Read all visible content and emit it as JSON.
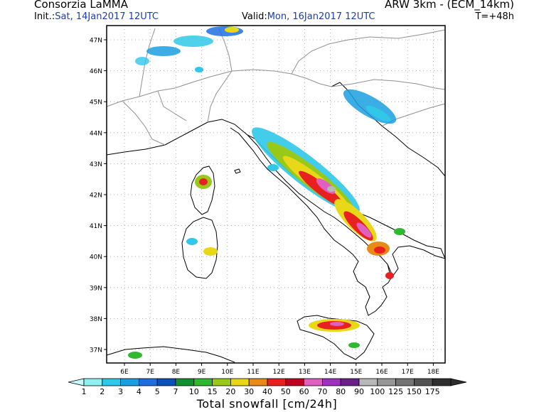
{
  "header": {
    "org": "Consorzia LaMMA",
    "init_label": "Init.:",
    "init_value": "Sat, 14Jan2017 12UTC",
    "model": "ARW 3km - (ECM_14km)",
    "valid_label": "Valid:",
    "valid_value": "Mon, 16Jan2017 12UTC",
    "timestep": "T=+48h"
  },
  "map": {
    "lat_labels": [
      "47N",
      "46N",
      "45N",
      "44N",
      "43N",
      "42N",
      "41N",
      "40N",
      "39N",
      "38N",
      "37N"
    ],
    "lon_labels": [
      "6E",
      "7E",
      "8E",
      "9E",
      "10E",
      "11E",
      "12E",
      "13E",
      "14E",
      "15E",
      "16E",
      "17E",
      "18E"
    ]
  },
  "colorbar": {
    "title": "Total snowfall [cm/24h]",
    "levels": [
      "1",
      "2",
      "3",
      "4",
      "5",
      "7",
      "10",
      "15",
      "20",
      "30",
      "40",
      "50",
      "60",
      "70",
      "80",
      "90",
      "100",
      "125",
      "150",
      "175"
    ],
    "colors": [
      "#8ff0f0",
      "#30c8e8",
      "#1aa0e0",
      "#1e6ee0",
      "#0a50b8",
      "#109030",
      "#30b830",
      "#98c818",
      "#e8d818",
      "#e88a18",
      "#e82020",
      "#c00020",
      "#e060c0",
      "#a030c0",
      "#6a2088",
      "#b8b8b8",
      "#969696",
      "#747474",
      "#525252",
      "#2e2e2e"
    ],
    "left_arrow_color": "#c8f8f8",
    "right_arrow_color": "#2e2e2e"
  }
}
